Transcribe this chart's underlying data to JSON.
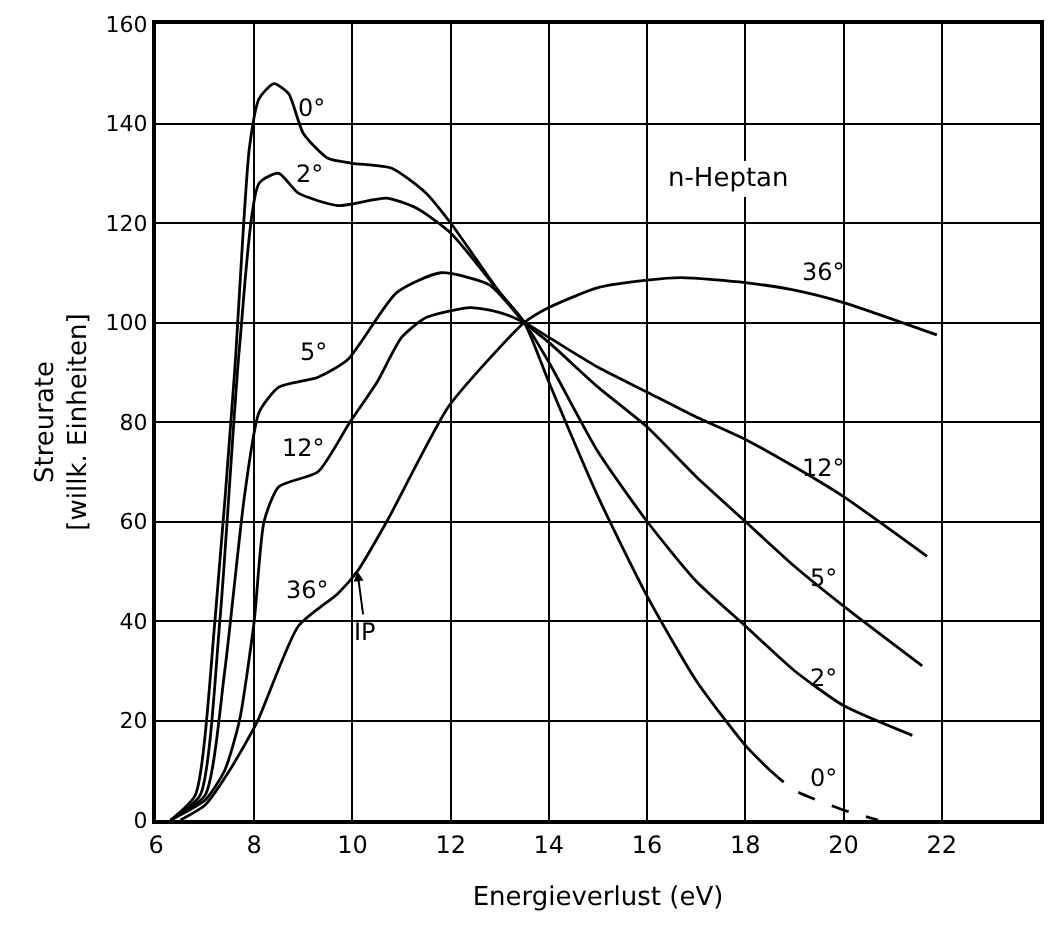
{
  "chart_data": {
    "type": "line",
    "xlabel": "Energieverlust (eV)",
    "ylabel": "Streurate\n[willk. Einheiten]",
    "xlim": [
      6,
      24
    ],
    "xticks": [
      6,
      8,
      10,
      12,
      14,
      16,
      18,
      20,
      22
    ],
    "ylim": [
      0,
      160
    ],
    "yticks": [
      0,
      20,
      40,
      60,
      80,
      100,
      120,
      140,
      160
    ],
    "grid": true,
    "marker": "none",
    "line_style": "solid",
    "series": [
      {
        "color": "#000000",
        "x": [
          6.3,
          6.8,
          7.2,
          7.6,
          7.9,
          8.1,
          8.4,
          8.7,
          9.0,
          9.5,
          10,
          10.8,
          11.5,
          12,
          12.5,
          13,
          13.5,
          14,
          15,
          16,
          17,
          18,
          18.5
        ],
        "values": [
          0,
          5,
          40,
          90,
          135,
          145,
          148,
          146,
          138,
          133,
          132,
          131,
          126,
          120,
          113,
          106,
          100,
          88,
          65,
          45,
          28,
          15,
          10
        ]
      },
      {
        "color": "#000000",
        "line_style": "dashed",
        "x": [
          18.5,
          19,
          20,
          20.7
        ],
        "values": [
          10,
          6,
          2,
          0
        ]
      },
      {
        "color": "#000000",
        "x": [
          6.3,
          6.9,
          7.3,
          7.7,
          8.1,
          8.5,
          8.9,
          9.7,
          10.7,
          11.3,
          12,
          13,
          13.5,
          14,
          15,
          16,
          17,
          18,
          19,
          20,
          21.4
        ],
        "values": [
          0,
          5,
          40,
          95,
          128,
          130,
          126,
          123.5,
          125,
          123,
          118,
          106,
          100,
          92,
          74,
          60,
          48,
          39,
          30,
          23,
          17
        ]
      },
      {
        "color": "#000000",
        "x": [
          6.3,
          7.0,
          7.4,
          7.8,
          8.1,
          8.5,
          9.3,
          9.9,
          10.9,
          11.8,
          12.8,
          13.5,
          14,
          15,
          16,
          17,
          18,
          19,
          20,
          21.6
        ],
        "values": [
          0,
          5,
          30,
          65,
          82,
          87,
          89,
          92.5,
          106,
          110,
          107.5,
          100,
          96,
          87,
          79,
          69,
          60,
          51,
          43,
          31
        ]
      },
      {
        "color": "#000000",
        "x": [
          6.3,
          7.0,
          7.4,
          7.7,
          8.0,
          8.2,
          8.5,
          9.3,
          9.95,
          10.5,
          11,
          11.5,
          12.4,
          13,
          13.5,
          14,
          15,
          16,
          17,
          18,
          19,
          20,
          21.7
        ],
        "values": [
          0,
          4,
          10,
          20,
          40,
          60,
          67,
          70,
          80,
          88,
          97,
          101,
          103,
          102,
          100,
          97,
          91,
          86,
          81,
          76.5,
          71,
          65,
          53
        ]
      },
      {
        "color": "#000000",
        "x": [
          6.5,
          7,
          7.5,
          8.05,
          8.9,
          9.7,
          10.1,
          10.7,
          11.95,
          13,
          13.5,
          14,
          15,
          16,
          16.7,
          18,
          19,
          20,
          21.9
        ],
        "values": [
          0,
          3,
          10,
          19.5,
          39,
          45.5,
          50,
          60,
          83,
          95,
          100,
          103,
          107,
          108.5,
          109,
          108,
          106.5,
          104,
          97.5
        ]
      }
    ],
    "annotations": [
      {
        "text": "0°",
        "x": 9.0,
        "y": 138
      },
      {
        "text": "2°",
        "x": 8.9,
        "y": 126
      },
      {
        "text": "5°",
        "x": 9.3,
        "y": 89
      },
      {
        "text": "12°",
        "x": 9.3,
        "y": 70
      },
      {
        "text": "36°",
        "x": 8.9,
        "y": 39
      },
      {
        "text": "IP",
        "x": 10.1,
        "y": 50
      },
      "n-Heptan",
      {
        "text": "36°",
        "x": 20,
        "y": 104
      },
      {
        "text": "12°",
        "x": 20,
        "y": 65
      },
      {
        "text": "5°",
        "x": 20,
        "y": 43
      },
      {
        "text": "2°",
        "x": 20,
        "y": 23
      },
      {
        "text": "0°",
        "x": 20,
        "y": 2
      }
    ]
  }
}
